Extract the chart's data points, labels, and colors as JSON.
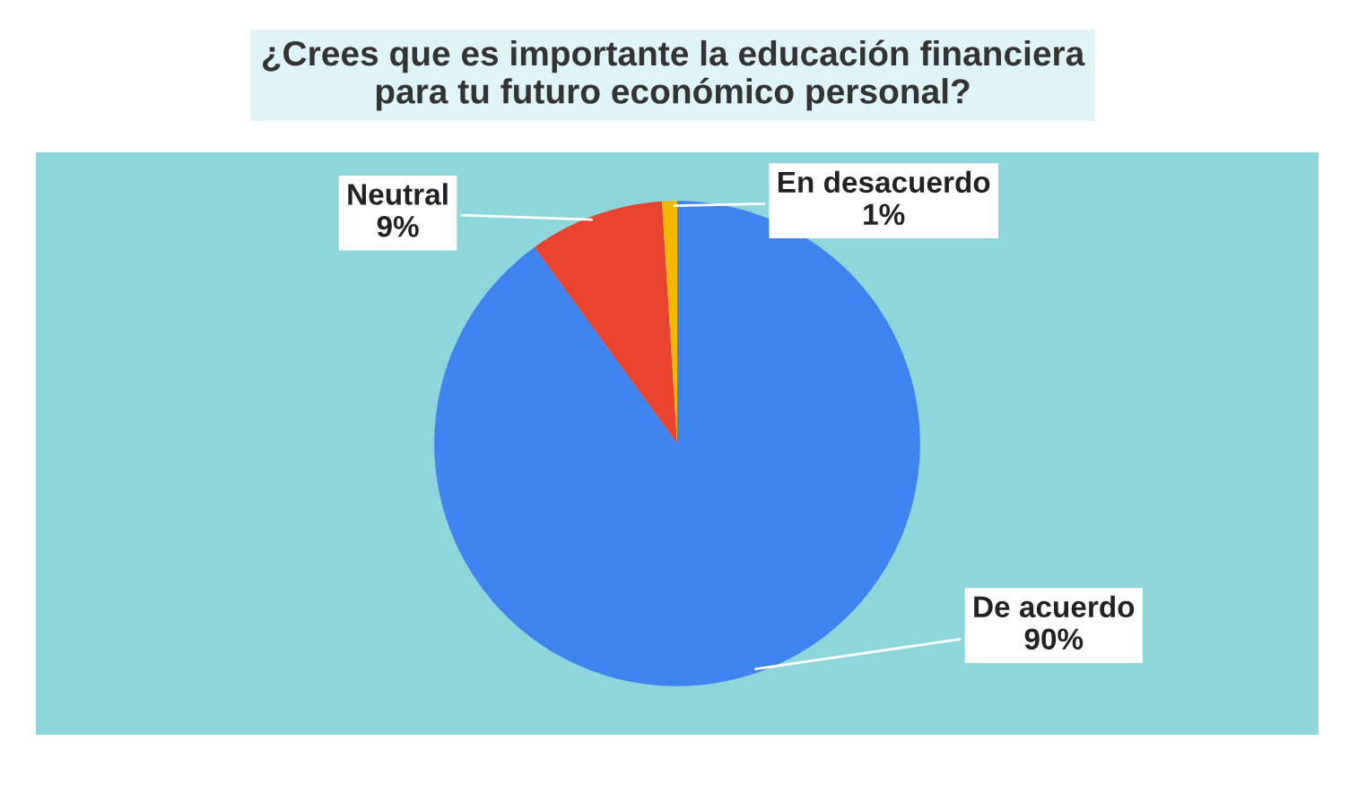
{
  "chart_data": {
    "type": "pie",
    "title": "¿Crees que es importante la educación financiera\npara tu futuro económico personal?",
    "categories": [
      "De acuerdo",
      "Neutral",
      "En desacuerdo"
    ],
    "values": [
      90,
      9,
      1
    ],
    "value_labels": [
      "90%",
      "9%",
      "1%"
    ],
    "colors": [
      "#3f83f0",
      "#e8432f",
      "#f5b800"
    ],
    "legend": false
  }
}
